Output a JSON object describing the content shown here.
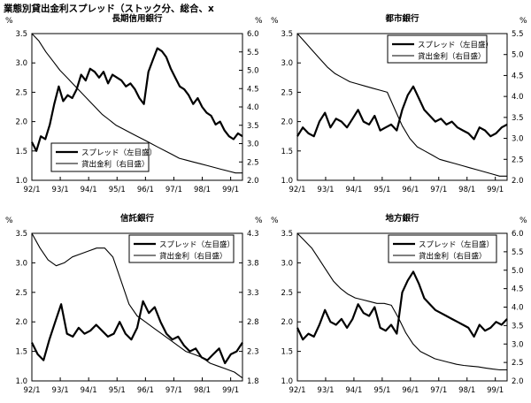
{
  "page": {
    "title": "業態別貸出金利スプレッド（ストック分、総合、x"
  },
  "chart_data": [
    {
      "type": "line",
      "title": "長期信用銀行",
      "left_unit": "%",
      "right_unit": "%",
      "ylim_left": [
        1.0,
        3.5
      ],
      "ylim_right": [
        2.0,
        6.0
      ],
      "left_ticks": [
        "1.0",
        "1.5",
        "2.0",
        "2.5",
        "3.0",
        "3.5"
      ],
      "right_ticks": [
        "2.0",
        "2.5",
        "3.0",
        "3.5",
        "4.0",
        "4.5",
        "5.0",
        "5.5",
        "6.0"
      ],
      "x_ticks": [
        "92/1",
        "93/1",
        "94/1",
        "95/1",
        "96/1",
        "97/1",
        "98/1",
        "99/1"
      ],
      "x_start": "1992-01",
      "x_end": "1999-06",
      "legend_position": "bottom-left",
      "grid": false,
      "series": [
        {
          "name": "スプレッド（左目盛）",
          "axis": "left",
          "line_width": 2.2,
          "values": [
            1.65,
            1.5,
            1.75,
            1.7,
            1.95,
            2.3,
            2.6,
            2.35,
            2.45,
            2.4,
            2.55,
            2.8,
            2.7,
            2.9,
            2.85,
            2.75,
            2.85,
            2.65,
            2.8,
            2.75,
            2.7,
            2.6,
            2.65,
            2.55,
            2.4,
            2.3,
            2.85,
            3.05,
            3.25,
            3.2,
            3.1,
            2.9,
            2.75,
            2.6,
            2.55,
            2.45,
            2.3,
            2.4,
            2.25,
            2.15,
            2.1,
            1.95,
            2.0,
            1.85,
            1.75,
            1.7,
            1.8,
            1.75
          ]
        },
        {
          "name": "貸出金利（右目盛）",
          "axis": "right",
          "line_width": 1.1,
          "values": [
            6.0,
            5.8,
            5.5,
            5.25,
            5.0,
            4.8,
            4.6,
            4.4,
            4.2,
            4.0,
            3.8,
            3.65,
            3.5,
            3.4,
            3.3,
            3.2,
            3.1,
            3.0,
            2.9,
            2.8,
            2.7,
            2.6,
            2.55,
            2.5,
            2.45,
            2.4,
            2.35,
            2.3,
            2.25,
            2.2,
            2.2
          ]
        }
      ]
    },
    {
      "type": "line",
      "title": "都市銀行",
      "left_unit": "%",
      "right_unit": "%",
      "ylim_left": [
        1.0,
        3.5
      ],
      "ylim_right": [
        2.0,
        5.5
      ],
      "left_ticks": [
        "1.0",
        "1.5",
        "2.0",
        "2.5",
        "3.0",
        "3.5"
      ],
      "right_ticks": [
        "2.0",
        "2.5",
        "3.0",
        "3.5",
        "4.0",
        "4.5",
        "5.0",
        "5.5"
      ],
      "x_ticks": [
        "92/1",
        "93/1",
        "94/1",
        "95/1",
        "96/1",
        "97/1",
        "98/1",
        "99/1"
      ],
      "x_start": "1992-01",
      "x_end": "1999-06",
      "legend_position": "top-right",
      "grid": false,
      "series": [
        {
          "name": "スプレッド（左目盛）",
          "axis": "left",
          "line_width": 2.2,
          "values": [
            1.75,
            1.9,
            1.8,
            1.75,
            2.0,
            2.15,
            1.9,
            2.05,
            2.0,
            1.9,
            2.05,
            2.2,
            2.0,
            1.95,
            2.1,
            1.85,
            1.9,
            1.95,
            1.85,
            2.2,
            2.45,
            2.6,
            2.4,
            2.2,
            2.1,
            2.0,
            2.05,
            1.95,
            2.0,
            1.9,
            1.85,
            1.8,
            1.7,
            1.9,
            1.85,
            1.75,
            1.8,
            1.9,
            1.95
          ]
        },
        {
          "name": "貸出金利（右目盛）",
          "axis": "right",
          "line_width": 1.1,
          "values": [
            5.5,
            5.3,
            5.1,
            4.9,
            4.7,
            4.55,
            4.45,
            4.35,
            4.3,
            4.25,
            4.2,
            4.15,
            4.1,
            3.7,
            3.3,
            3.0,
            2.8,
            2.7,
            2.6,
            2.5,
            2.45,
            2.4,
            2.35,
            2.3,
            2.25,
            2.2,
            2.15,
            2.1,
            2.1
          ]
        }
      ]
    },
    {
      "type": "line",
      "title": "信託銀行",
      "left_unit": "%",
      "right_unit": "%",
      "ylim_left": [
        1.0,
        3.5
      ],
      "ylim_right": [
        1.8,
        4.3
      ],
      "left_ticks": [
        "1.0",
        "1.5",
        "2.0",
        "2.5",
        "3.0",
        "3.5"
      ],
      "right_ticks": [
        "1.8",
        "2.3",
        "2.8",
        "3.3",
        "3.8",
        "4.3"
      ],
      "x_ticks": [
        "92/1",
        "93/1",
        "94/1",
        "95/1",
        "96/1",
        "97/1",
        "98/1",
        "99/1"
      ],
      "x_start": "1992-01",
      "x_end": "1999-06",
      "legend_position": "top-right",
      "grid": false,
      "series": [
        {
          "name": "スプレッド（左目盛）",
          "axis": "left",
          "line_width": 2.2,
          "values": [
            1.65,
            1.45,
            1.35,
            1.7,
            2.0,
            2.3,
            1.8,
            1.75,
            1.9,
            1.8,
            1.85,
            1.95,
            1.85,
            1.75,
            1.8,
            2.0,
            1.8,
            1.7,
            1.9,
            2.35,
            2.15,
            2.25,
            2.0,
            1.8,
            1.7,
            1.75,
            1.6,
            1.5,
            1.55,
            1.4,
            1.35,
            1.45,
            1.55,
            1.3,
            1.45,
            1.5,
            1.65
          ]
        },
        {
          "name": "貸出金利（右目盛）",
          "axis": "right",
          "line_width": 1.1,
          "values": [
            4.3,
            4.05,
            3.85,
            3.75,
            3.8,
            3.9,
            3.95,
            4.0,
            4.05,
            4.05,
            3.9,
            3.5,
            3.1,
            2.9,
            2.8,
            2.7,
            2.6,
            2.5,
            2.4,
            2.3,
            2.25,
            2.2,
            2.1,
            2.05,
            2.0,
            1.95,
            1.85
          ]
        }
      ]
    },
    {
      "type": "line",
      "title": "地方銀行",
      "left_unit": "%",
      "right_unit": "%",
      "ylim_left": [
        1.0,
        3.5
      ],
      "ylim_right": [
        2.0,
        6.0
      ],
      "left_ticks": [
        "1.0",
        "1.5",
        "2.0",
        "2.5",
        "3.0",
        "3.5"
      ],
      "right_ticks": [
        "2.0",
        "2.5",
        "3.0",
        "3.5",
        "4.0",
        "4.5",
        "5.0",
        "5.5",
        "6.0"
      ],
      "x_ticks": [
        "92/1",
        "93/1",
        "94/1",
        "95/1",
        "96/1",
        "97/1",
        "98/1",
        "99/1"
      ],
      "x_start": "1992-01",
      "x_end": "1999-06",
      "legend_position": "top-right",
      "grid": false,
      "series": [
        {
          "name": "スプレッド（左目盛）",
          "axis": "left",
          "line_width": 2.2,
          "values": [
            1.9,
            1.7,
            1.8,
            1.75,
            1.95,
            2.2,
            2.0,
            1.95,
            2.05,
            1.9,
            2.05,
            2.3,
            2.15,
            2.1,
            2.25,
            1.9,
            1.85,
            1.95,
            1.8,
            2.5,
            2.7,
            2.85,
            2.65,
            2.4,
            2.3,
            2.2,
            2.15,
            2.1,
            2.05,
            2.0,
            1.95,
            1.9,
            1.75,
            1.95,
            1.85,
            1.9,
            2.0,
            1.95,
            2.05
          ]
        },
        {
          "name": "貸出金利（右目盛）",
          "axis": "right",
          "line_width": 1.1,
          "values": [
            6.0,
            5.8,
            5.6,
            5.3,
            5.0,
            4.7,
            4.5,
            4.35,
            4.25,
            4.2,
            4.15,
            4.1,
            4.1,
            4.05,
            3.7,
            3.3,
            3.0,
            2.8,
            2.7,
            2.6,
            2.55,
            2.5,
            2.45,
            2.42,
            2.4,
            2.38,
            2.35,
            2.32,
            2.3,
            2.3
          ]
        }
      ]
    }
  ]
}
